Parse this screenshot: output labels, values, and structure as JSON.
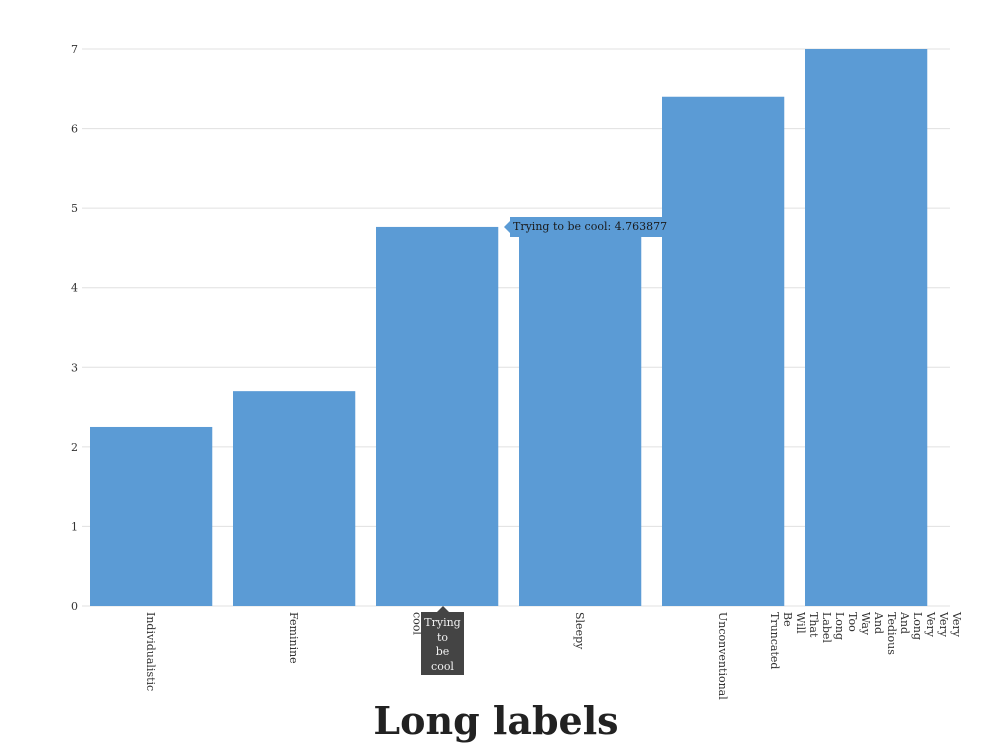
{
  "chart_data": {
    "type": "bar",
    "title": "Long labels",
    "xlabel": "",
    "ylabel": "",
    "ylim": [
      0,
      7
    ],
    "yticks": [
      "0",
      "1",
      "2",
      "3",
      "4",
      "5",
      "6",
      "7"
    ],
    "categories": [
      "Individualistic",
      "Feminine",
      "Trying to be cool",
      "Sleepy",
      "Unconventional",
      "Very Very Very Long And Tedious And Way Too Long Label That Will Be Truncated"
    ],
    "values": [
      2.25,
      2.7,
      4.763877,
      4.88,
      6.4,
      7.0
    ],
    "grid": true,
    "colors": {
      "bar": "#5b9bd5",
      "grid": "#e0e0e0",
      "tooltip": "#5b9bd5",
      "label_tooltip": "#444444"
    },
    "tooltip": {
      "text": "Trying to be cool: 4.763877"
    },
    "label_tooltip": {
      "words": [
        "Trying",
        "to",
        "be",
        "cool"
      ]
    }
  }
}
